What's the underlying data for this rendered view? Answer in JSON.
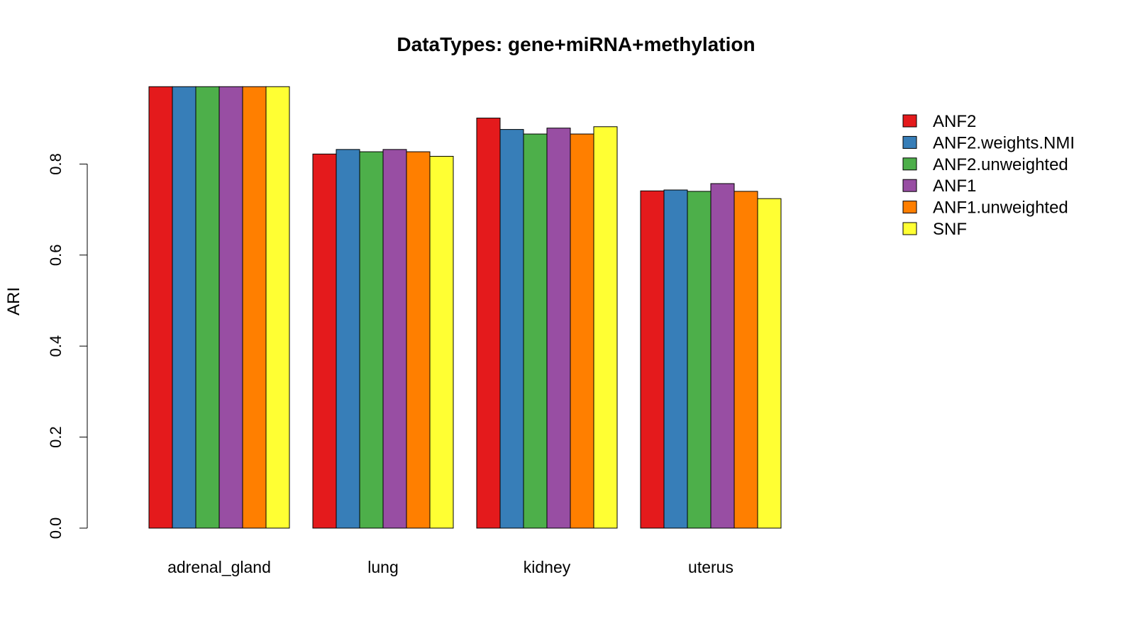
{
  "chart_data": {
    "type": "bar",
    "title": "DataTypes: gene+miRNA+methylation",
    "xlabel": "",
    "ylabel": "ARI",
    "ylim": [
      0,
      1.0
    ],
    "yticks": [
      "0.0",
      "0.2",
      "0.4",
      "0.6",
      "0.8"
    ],
    "categories": [
      "adrenal_gland",
      "lung",
      "kidney",
      "uterus"
    ],
    "series": [
      {
        "name": "ANF2",
        "color": "#E41A1C",
        "values": [
          0.97,
          0.822,
          0.901,
          0.741
        ]
      },
      {
        "name": "ANF2.weights.NMI",
        "color": "#377EB8",
        "values": [
          0.97,
          0.832,
          0.876,
          0.743
        ]
      },
      {
        "name": "ANF2.unweighted",
        "color": "#4DAF4A",
        "values": [
          0.97,
          0.827,
          0.866,
          0.74
        ]
      },
      {
        "name": "ANF1",
        "color": "#984EA3",
        "values": [
          0.97,
          0.832,
          0.879,
          0.757
        ]
      },
      {
        "name": "ANF1.unweighted",
        "color": "#FF7F00",
        "values": [
          0.97,
          0.827,
          0.866,
          0.74
        ]
      },
      {
        "name": "SNF",
        "color": "#FFFF33",
        "values": [
          0.97,
          0.817,
          0.882,
          0.724
        ]
      }
    ],
    "grid": false,
    "legend_position": "top-right"
  }
}
